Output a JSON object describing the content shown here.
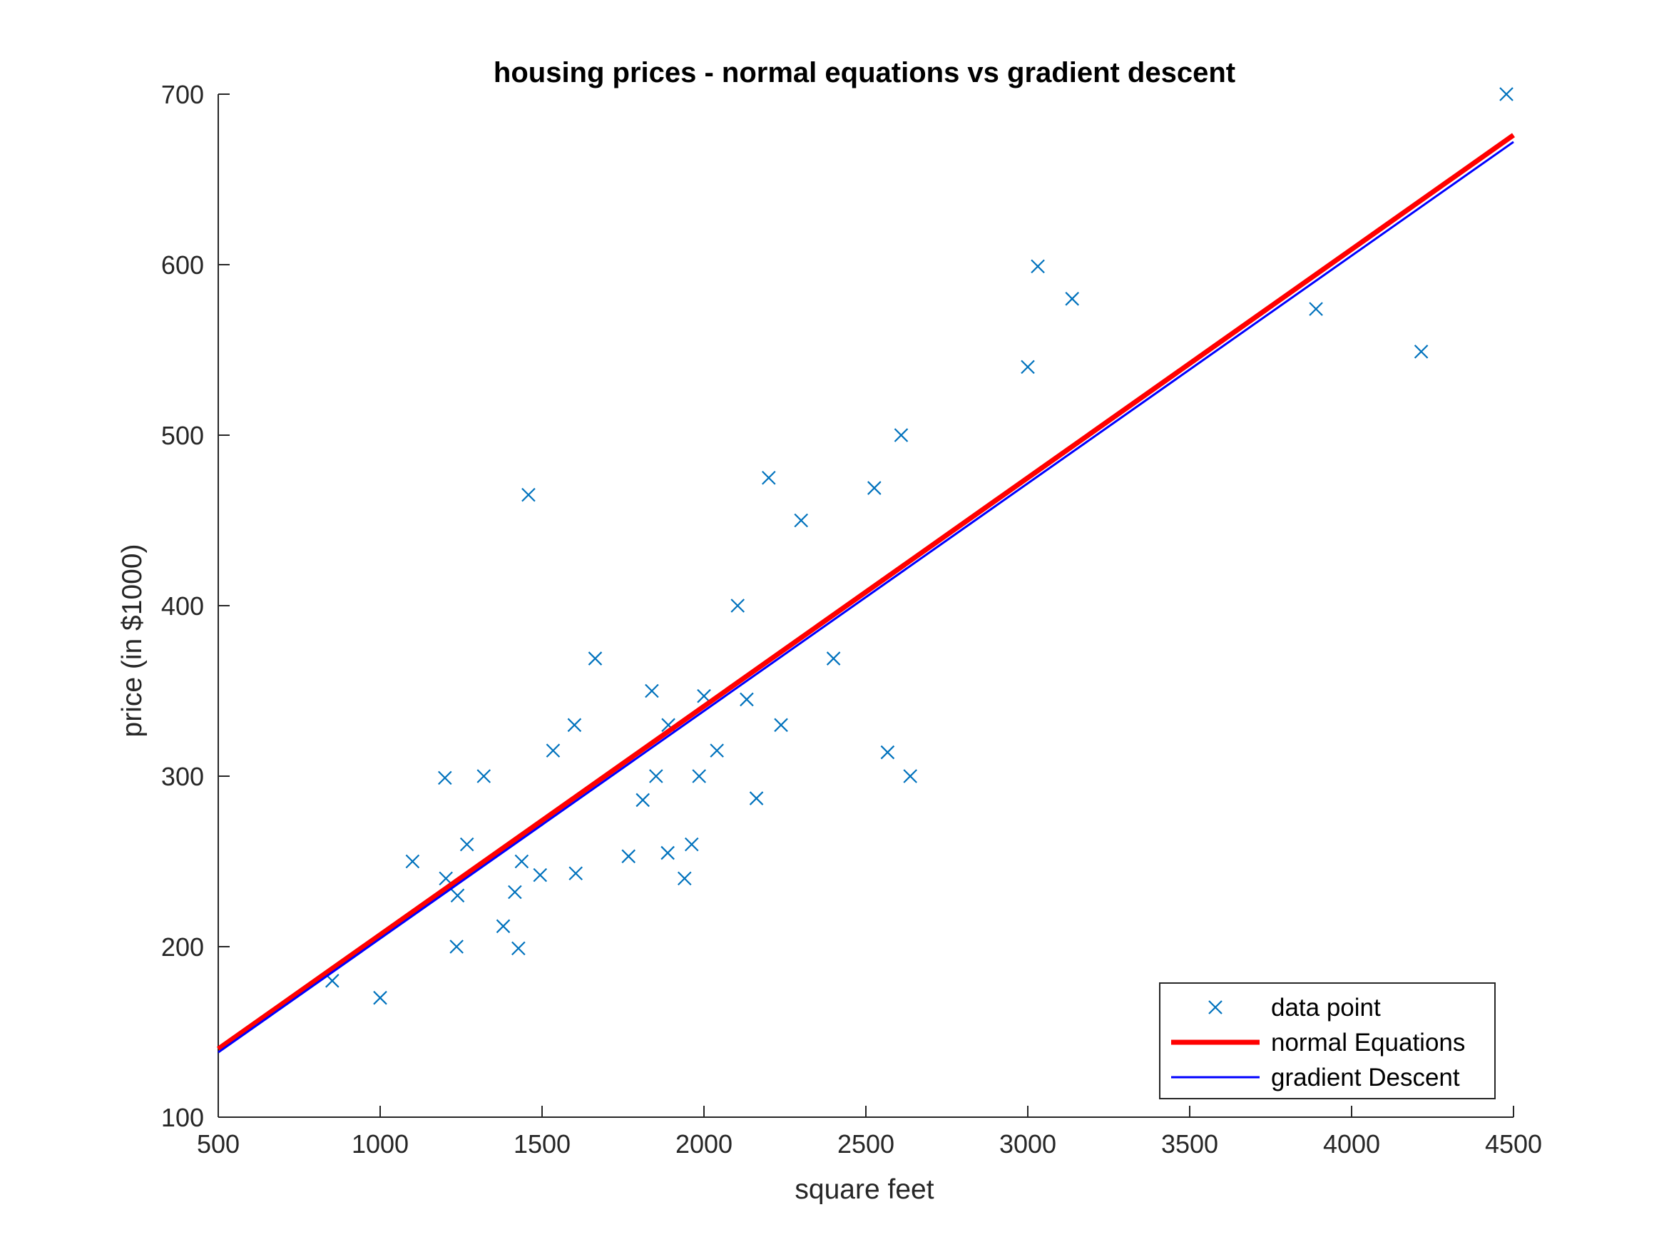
{
  "chart_data": {
    "type": "scatter",
    "title": "housing prices - normal equations vs gradient descent",
    "xlabel": "square feet",
    "ylabel": "price (in $1000)",
    "xlim": [
      500,
      4500
    ],
    "ylim": [
      100,
      700
    ],
    "xticks": [
      500,
      1000,
      1500,
      2000,
      2500,
      3000,
      3500,
      4000,
      4500
    ],
    "yticks": [
      100,
      200,
      300,
      400,
      500,
      600,
      700
    ],
    "grid": false,
    "legend_position": "bottom-right",
    "series": [
      {
        "name": "data point",
        "kind": "scatter",
        "marker": "x",
        "color": "#0072BD",
        "points": [
          [
            2104,
            400
          ],
          [
            1600,
            330
          ],
          [
            2400,
            369
          ],
          [
            1416,
            232
          ],
          [
            3000,
            540
          ],
          [
            1985,
            300
          ],
          [
            1534,
            315
          ],
          [
            1427,
            199
          ],
          [
            1380,
            212
          ],
          [
            1494,
            242
          ],
          [
            1940,
            240
          ],
          [
            2000,
            347
          ],
          [
            1890,
            330
          ],
          [
            4478,
            700
          ],
          [
            1268,
            260
          ],
          [
            2300,
            450
          ],
          [
            1320,
            300
          ],
          [
            1236,
            200
          ],
          [
            2609,
            500
          ],
          [
            3031,
            599
          ],
          [
            1767,
            253
          ],
          [
            1888,
            255
          ],
          [
            1604,
            243
          ],
          [
            1962,
            260
          ],
          [
            3890,
            574
          ],
          [
            1100,
            250
          ],
          [
            1458,
            465
          ],
          [
            2526,
            469
          ],
          [
            2200,
            475
          ],
          [
            2637,
            300
          ],
          [
            1839,
            350
          ],
          [
            1000,
            170
          ],
          [
            2040,
            315
          ],
          [
            3137,
            580
          ],
          [
            1811,
            286
          ],
          [
            1437,
            250
          ],
          [
            1239,
            230
          ],
          [
            2132,
            345
          ],
          [
            4215,
            549
          ],
          [
            2162,
            287
          ],
          [
            1664,
            369
          ],
          [
            2238,
            330
          ],
          [
            2567,
            314
          ],
          [
            1200,
            299
          ],
          [
            852,
            180
          ],
          [
            1852,
            300
          ],
          [
            1203,
            240
          ]
        ]
      },
      {
        "name": "normal Equations",
        "kind": "line",
        "color": "#FF0000",
        "line_width_class": "thick",
        "points": [
          [
            500,
            140
          ],
          [
            4500,
            676
          ]
        ]
      },
      {
        "name": "gradient Descent",
        "kind": "line",
        "color": "#0000FF",
        "line_width_class": "thin",
        "points": [
          [
            500,
            138
          ],
          [
            4500,
            672
          ]
        ]
      }
    ]
  }
}
